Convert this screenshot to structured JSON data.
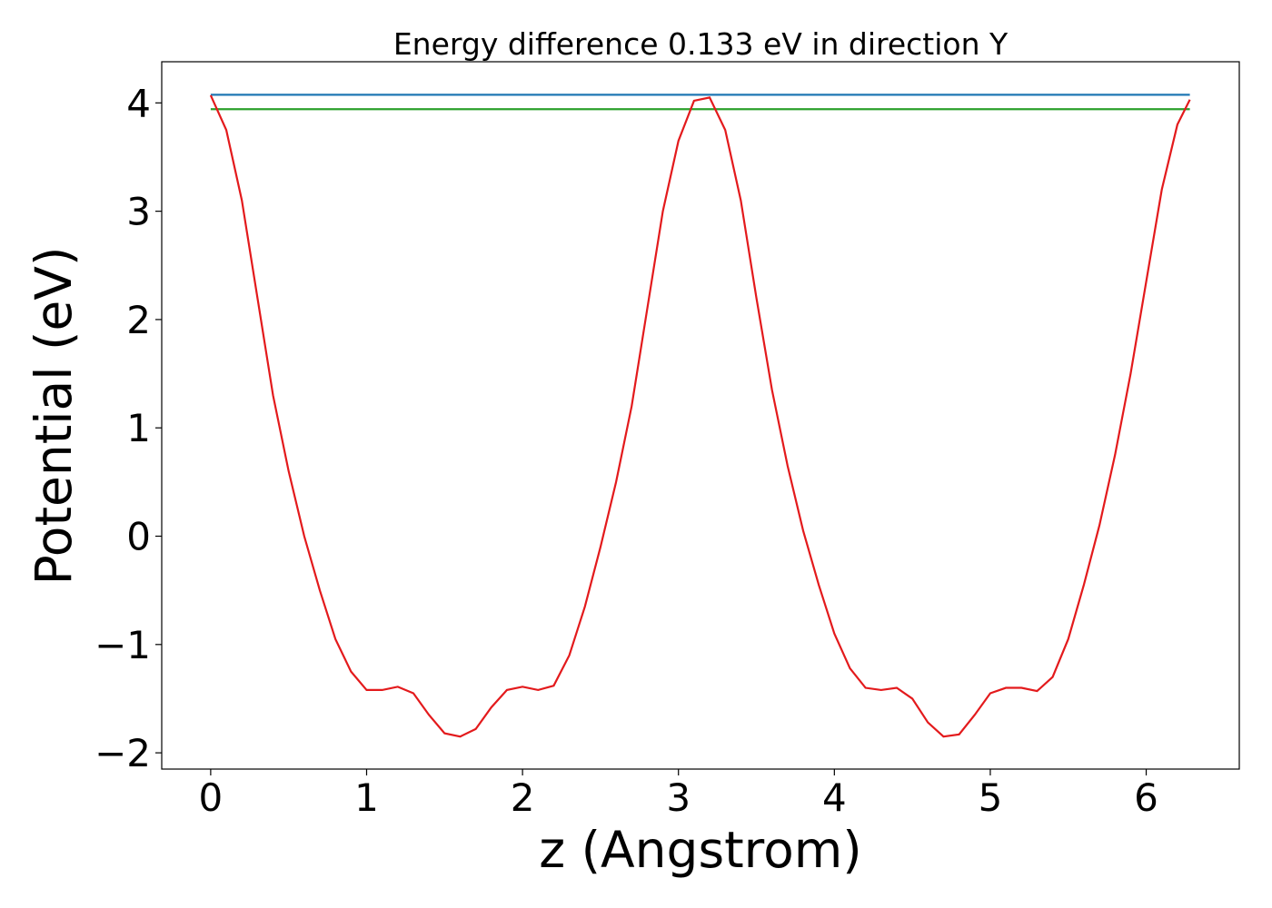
{
  "chart_data": {
    "type": "line",
    "title": "Energy difference 0.133 eV in direction Y",
    "x_label": "z (Angstrom)",
    "y_label": "Potential (eV)",
    "xlim": [
      -0.314,
      6.597
    ],
    "ylim": [
      -2.15,
      4.38
    ],
    "xticks": [
      0,
      1,
      2,
      3,
      4,
      5,
      6
    ],
    "yticks": [
      {
        "value": -2,
        "label": "−2"
      },
      {
        "value": -1,
        "label": "−1"
      },
      0,
      1,
      2,
      3,
      4
    ],
    "x": [
      0,
      0.1,
      0.2,
      0.3,
      0.4,
      0.5,
      0.6,
      0.7,
      0.8,
      0.9,
      1.0,
      1.1,
      1.2,
      1.3,
      1.4,
      1.5,
      1.6,
      1.7,
      1.8,
      1.9,
      2.0,
      2.1,
      2.2,
      2.3,
      2.4,
      2.5,
      2.6,
      2.7,
      2.8,
      2.9,
      3.0,
      3.1,
      3.2,
      3.3,
      3.4,
      3.5,
      3.6,
      3.7,
      3.8,
      3.9,
      4.0,
      4.1,
      4.2,
      4.3,
      4.4,
      4.5,
      4.6,
      4.7,
      4.8,
      4.9,
      5.0,
      5.1,
      5.2,
      5.3,
      5.4,
      5.5,
      5.6,
      5.7,
      5.8,
      5.9,
      6.0,
      6.1,
      6.2,
      6.28
    ],
    "series": [
      {
        "color": "#1f77b4",
        "values": [
          4.075,
          4.075,
          4.075,
          4.075,
          4.075,
          4.075,
          4.075,
          4.075,
          4.075,
          4.075,
          4.075,
          4.075,
          4.075,
          4.075,
          4.075,
          4.075,
          4.075,
          4.075,
          4.075,
          4.075,
          4.075,
          4.075,
          4.075,
          4.075,
          4.075,
          4.075,
          4.075,
          4.075,
          4.075,
          4.075,
          4.075,
          4.075,
          4.075,
          4.075,
          4.075,
          4.075,
          4.075,
          4.075,
          4.075,
          4.075,
          4.075,
          4.075,
          4.075,
          4.075,
          4.075,
          4.075,
          4.075,
          4.075,
          4.075,
          4.075,
          4.075,
          4.075,
          4.075,
          4.075,
          4.075,
          4.075,
          4.075,
          4.075,
          4.075,
          4.075,
          4.075,
          4.075,
          4.075,
          4.075
        ]
      },
      {
        "color": "#2ca02c",
        "values": [
          3.942,
          3.942,
          3.942,
          3.942,
          3.942,
          3.942,
          3.942,
          3.942,
          3.942,
          3.942,
          3.942,
          3.942,
          3.942,
          3.942,
          3.942,
          3.942,
          3.942,
          3.942,
          3.942,
          3.942,
          3.942,
          3.942,
          3.942,
          3.942,
          3.942,
          3.942,
          3.942,
          3.942,
          3.942,
          3.942,
          3.942,
          3.942,
          3.942,
          3.942,
          3.942,
          3.942,
          3.942,
          3.942,
          3.942,
          3.942,
          3.942,
          3.942,
          3.942,
          3.942,
          3.942,
          3.942,
          3.942,
          3.942,
          3.942,
          3.942,
          3.942,
          3.942,
          3.942,
          3.942,
          3.942,
          3.942,
          3.942,
          3.942,
          3.942,
          3.942,
          3.942,
          3.942,
          3.942,
          3.942
        ]
      },
      {
        "color": "#e31a1c",
        "values": [
          4.07,
          3.75,
          3.1,
          2.2,
          1.3,
          0.6,
          0.0,
          -0.5,
          -0.95,
          -1.25,
          -1.42,
          -1.42,
          -1.39,
          -1.45,
          -1.65,
          -1.82,
          -1.85,
          -1.78,
          -1.58,
          -1.42,
          -1.39,
          -1.42,
          -1.38,
          -1.1,
          -0.65,
          -0.1,
          0.5,
          1.2,
          2.1,
          3.0,
          3.65,
          4.02,
          4.05,
          3.75,
          3.1,
          2.2,
          1.35,
          0.65,
          0.05,
          -0.45,
          -0.9,
          -1.22,
          -1.4,
          -1.42,
          -1.4,
          -1.5,
          -1.72,
          -1.85,
          -1.83,
          -1.65,
          -1.45,
          -1.4,
          -1.4,
          -1.43,
          -1.3,
          -0.95,
          -0.45,
          0.1,
          0.75,
          1.5,
          2.35,
          3.2,
          3.8,
          4.03
        ]
      }
    ]
  }
}
